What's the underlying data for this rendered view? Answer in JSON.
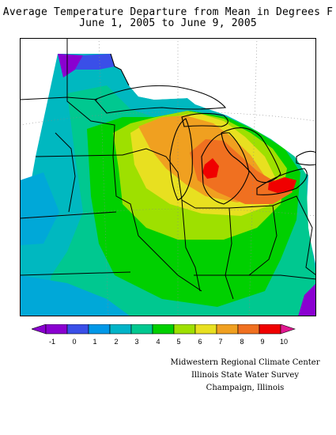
{
  "title": {
    "line1": "Average Temperature Departure from Mean in Degrees F",
    "line2": "June 1, 2005 to June 9, 2005"
  },
  "legend": {
    "ticks": [
      "-1",
      "0",
      "1",
      "2",
      "3",
      "4",
      "5",
      "6",
      "7",
      "8",
      "9",
      "10"
    ],
    "colors": [
      "#8a00d0",
      "#3a4fe8",
      "#0098e8",
      "#00b4c8",
      "#00c890",
      "#00d000",
      "#9ee000",
      "#e8e020",
      "#f0a020",
      "#f07020",
      "#f00000",
      "#e01890"
    ]
  },
  "credits": {
    "line1": "Midwestern Regional Climate Center",
    "line2": "Illinois State Water Survey",
    "line3": "Champaign, Illinois"
  },
  "colors": {
    "land_no_data": "#ffffff",
    "boundary": "#000000",
    "graticule": "#888888"
  }
}
